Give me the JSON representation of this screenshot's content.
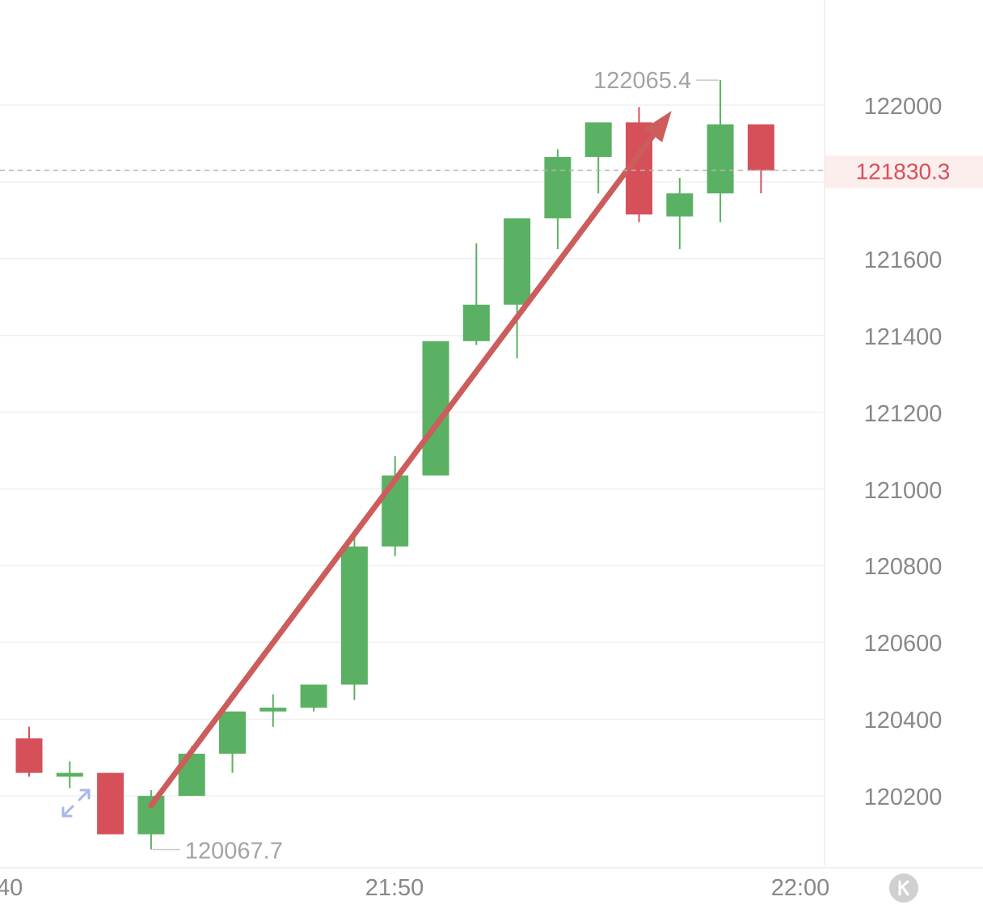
{
  "chart_data": {
    "type": "candlestick",
    "title": "",
    "xlabel": "",
    "ylabel": "",
    "y_ticks": [
      "122000",
      "121600",
      "121400",
      "121200",
      "121000",
      "120800",
      "120600",
      "120400",
      "120200"
    ],
    "x_ticks": [
      "40",
      "21:50",
      "22:00"
    ],
    "ylim": [
      120000,
      122100
    ],
    "grid": true,
    "high_label": "122065.4",
    "low_label": "120067.7",
    "current_price": 121830.3,
    "current_price_label": "121830.3",
    "candles": [
      {
        "open": 120350,
        "close": 120260,
        "high": 120380,
        "low": 120250
      },
      {
        "open": 120250,
        "close": 120260,
        "high": 120290,
        "low": 120220
      },
      {
        "open": 120260,
        "close": 120100,
        "high": 120260,
        "low": 120100
      },
      {
        "open": 120100,
        "close": 120200,
        "high": 120215,
        "low": 120060
      },
      {
        "open": 120200,
        "close": 120310,
        "high": 120330,
        "low": 120200
      },
      {
        "open": 120310,
        "close": 120420,
        "high": 120420,
        "low": 120260
      },
      {
        "open": 120420,
        "close": 120430,
        "high": 120465,
        "low": 120380
      },
      {
        "open": 120430,
        "close": 120490,
        "high": 120490,
        "low": 120420
      },
      {
        "open": 120490,
        "close": 120850,
        "high": 120880,
        "low": 120450
      },
      {
        "open": 120850,
        "close": 121035,
        "high": 121085,
        "low": 120825
      },
      {
        "open": 121035,
        "close": 121385,
        "high": 121385,
        "low": 121035
      },
      {
        "open": 121385,
        "close": 121480,
        "high": 121640,
        "low": 121375
      },
      {
        "open": 121480,
        "close": 121705,
        "high": 121705,
        "low": 121340
      },
      {
        "open": 121705,
        "close": 121865,
        "high": 121885,
        "low": 121625
      },
      {
        "open": 121865,
        "close": 121955,
        "high": 121955,
        "low": 121770
      },
      {
        "open": 121955,
        "close": 121715,
        "high": 121995,
        "low": 121695
      },
      {
        "open": 121710,
        "close": 121770,
        "high": 121810,
        "low": 121625
      },
      {
        "open": 121770,
        "close": 121950,
        "high": 122065,
        "low": 121695
      },
      {
        "open": 121950,
        "close": 121830,
        "high": 121950,
        "low": 121770
      }
    ],
    "annotation": {
      "type": "arrow",
      "from_index": 3,
      "from_value": 120175,
      "to_index": 15.8,
      "to_value": 121985
    }
  },
  "colors": {
    "up": "#5bb163",
    "down": "#d6505a",
    "grid": "#f0f0f0",
    "axis_text": "#888888",
    "arrow": "#cd5c5c",
    "current_price": "#d6505a",
    "current_price_bg": "#fdeeee",
    "badge": "#d0d0d0"
  },
  "icons": [
    "expand-diagonal-icon",
    "k-logo-icon"
  ]
}
